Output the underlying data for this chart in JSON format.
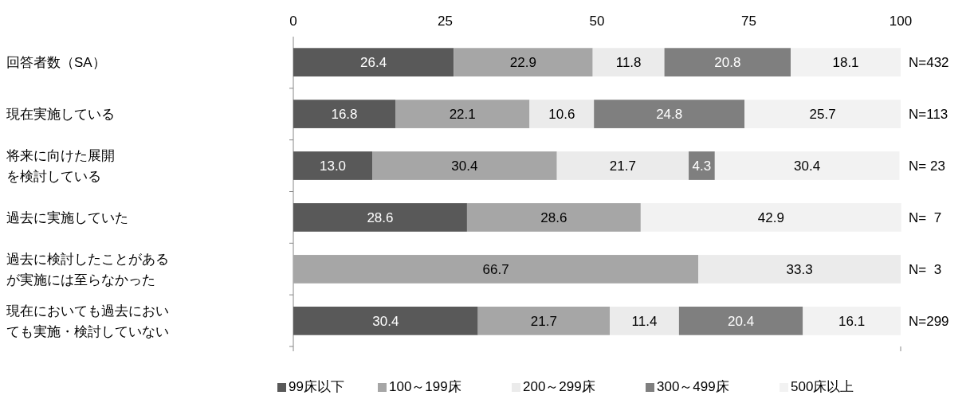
{
  "chart_data": {
    "type": "bar",
    "orientation": "horizontal",
    "stacked": true,
    "legend": "bottom",
    "grid": false,
    "categories": [
      "回答者数（SA）",
      "現在実施している",
      "将来に向けた展開を検討している",
      "過去に実施していた",
      "過去に検討したことがあるが実施には至らなかった",
      "現在においても過去においても実施・検討していない"
    ],
    "xlim": [
      0,
      100
    ],
    "xticks": [
      0,
      25,
      50,
      75,
      100
    ],
    "series": [
      {
        "name": "99床以下",
        "color": "#595959",
        "values": [
          26.4,
          16.8,
          13.0,
          28.6,
          null,
          30.4
        ],
        "value_labels": [
          "26.4",
          "16.8",
          "13.0",
          "28.6",
          null,
          "30.4"
        ]
      },
      {
        "name": "100～199床",
        "color": "#a6a6a6",
        "values": [
          22.9,
          22.1,
          30.4,
          28.6,
          66.7,
          21.7
        ],
        "value_labels": [
          "22.9",
          "22.1",
          "30.4",
          "28.6",
          "66.7",
          "21.7"
        ]
      },
      {
        "name": "200～299床",
        "color": "#ebebeb",
        "values": [
          11.8,
          10.6,
          21.7,
          null,
          33.3,
          11.4
        ],
        "value_labels": [
          "11.8",
          "10.6",
          "21.7",
          null,
          "33.3",
          "11.4"
        ]
      },
      {
        "name": "300～499床",
        "color": "#7f7f7f",
        "values": [
          20.8,
          24.8,
          4.3,
          null,
          null,
          20.4
        ],
        "value_labels": [
          "20.8",
          "24.8",
          "4.3",
          null,
          null,
          "20.4"
        ]
      },
      {
        "name": "500床以上",
        "color": "#f2f2f2",
        "values": [
          18.1,
          25.7,
          30.4,
          42.9,
          null,
          16.1
        ],
        "value_labels": [
          "18.1",
          "25.7",
          "30.4",
          "42.9",
          null,
          "16.1"
        ]
      }
    ],
    "annotations": [
      "N=432",
      "N=113",
      "N= 23",
      "N=  7",
      "N=  3",
      "N=299"
    ]
  }
}
